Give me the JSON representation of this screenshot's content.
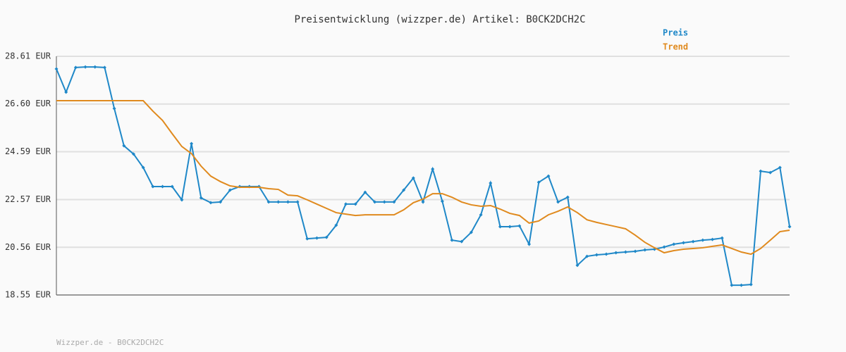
{
  "chart_data": {
    "type": "line",
    "title": "Preisentwicklung (wizzper.de) Artikel: B0CK2DCH2C",
    "footer": "Wizzper.de - B0CK2DCH2C",
    "categories": [
      null,
      null,
      null,
      null,
      null,
      null,
      null,
      null,
      null,
      null,
      null,
      null,
      null,
      null,
      null,
      null,
      null,
      null,
      null,
      null,
      null,
      null,
      null,
      null,
      null,
      null,
      null,
      null,
      null,
      null,
      null,
      null,
      null,
      null,
      null,
      null,
      null,
      null,
      null,
      null,
      null,
      null,
      null,
      null,
      null,
      null,
      null,
      null,
      null,
      null,
      null,
      null,
      null,
      null,
      null,
      null,
      null,
      null,
      null,
      null,
      null,
      null,
      null,
      null,
      null,
      null,
      null,
      null,
      null,
      null,
      null,
      null,
      null,
      null,
      null,
      null,
      null
    ],
    "series": [
      {
        "name": "Preis",
        "color": "#1f88c8",
        "markers": true,
        "values": [
          28.08,
          27.1,
          28.14,
          28.16,
          28.16,
          28.14,
          26.41,
          24.84,
          24.49,
          23.92,
          23.12,
          23.12,
          23.12,
          22.56,
          24.93,
          22.64,
          22.44,
          22.47,
          22.97,
          23.12,
          23.12,
          23.12,
          22.47,
          22.47,
          22.47,
          22.47,
          20.92,
          20.95,
          20.98,
          21.49,
          22.38,
          22.38,
          22.88,
          22.47,
          22.47,
          22.47,
          22.97,
          23.48,
          22.47,
          23.86,
          22.5,
          20.86,
          20.8,
          21.19,
          21.93,
          23.27,
          21.43,
          21.43,
          21.46,
          20.69,
          23.3,
          23.56,
          22.47,
          22.67,
          19.8,
          20.18,
          20.24,
          20.27,
          20.33,
          20.36,
          20.39,
          20.45,
          20.48,
          20.57,
          20.69,
          20.75,
          20.8,
          20.86,
          20.89,
          20.95,
          18.96,
          18.96,
          18.99,
          23.77,
          23.71,
          23.92,
          21.43
        ]
      },
      {
        "name": "Trend",
        "color": "#e08a1e",
        "markers": false,
        "values": [
          26.74,
          26.74,
          26.74,
          26.74,
          26.74,
          26.74,
          26.74,
          26.74,
          26.74,
          26.74,
          26.3,
          25.91,
          25.35,
          24.81,
          24.51,
          23.98,
          23.56,
          23.33,
          23.15,
          23.09,
          23.09,
          23.09,
          23.03,
          23.0,
          22.76,
          22.73,
          22.56,
          22.38,
          22.2,
          22.02,
          21.96,
          21.9,
          21.93,
          21.93,
          21.93,
          21.93,
          22.14,
          22.44,
          22.59,
          22.82,
          22.82,
          22.67,
          22.47,
          22.35,
          22.29,
          22.32,
          22.17,
          21.99,
          21.9,
          21.58,
          21.67,
          21.93,
          22.08,
          22.26,
          22.02,
          21.72,
          21.61,
          21.52,
          21.43,
          21.34,
          21.07,
          20.77,
          20.54,
          20.33,
          20.42,
          20.48,
          20.51,
          20.54,
          20.6,
          20.66,
          20.51,
          20.36,
          20.27,
          20.51,
          20.86,
          21.22,
          21.28
        ]
      }
    ],
    "ylim": [
      18.55,
      28.61
    ],
    "yticks": [
      {
        "value": 18.55,
        "label": "18.55 EUR"
      },
      {
        "value": 20.56,
        "label": "20.56 EUR"
      },
      {
        "value": 22.57,
        "label": "22.57 EUR"
      },
      {
        "value": 24.59,
        "label": "24.59 EUR"
      },
      {
        "value": 26.6,
        "label": "26.60 EUR"
      },
      {
        "value": 28.61,
        "label": "28.61 EUR"
      }
    ],
    "grid": true
  }
}
